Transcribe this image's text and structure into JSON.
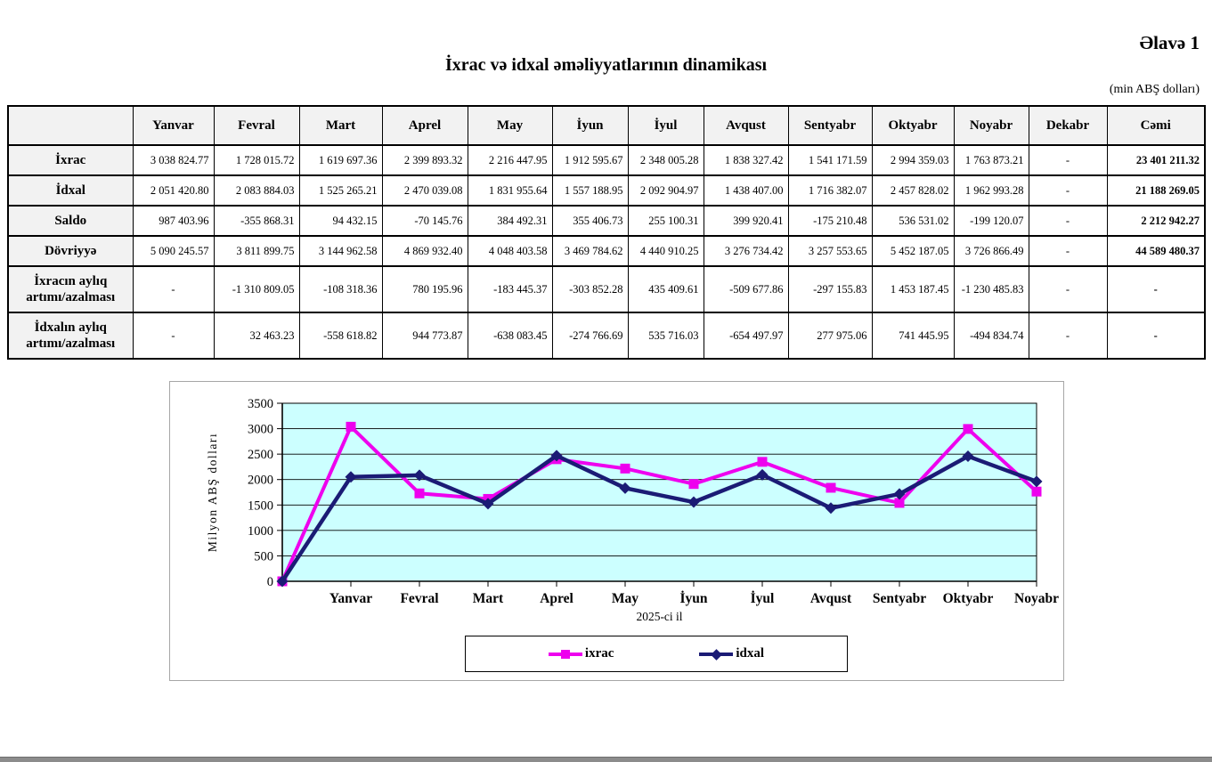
{
  "page": {
    "appendix_label": "Əlavə 1",
    "title": "İxrac və idxal əməliyyatlarının dinamikası",
    "unit_note": "(min ABŞ dolları)"
  },
  "table": {
    "columns": [
      "",
      "Yanvar",
      "Fevral",
      "Mart",
      "Aprel",
      "May",
      "İyun",
      "İyul",
      "Avqust",
      "Sentyabr",
      "Oktyabr",
      "Noyabr",
      "Dekabr",
      "Cəmi"
    ],
    "rows": [
      {
        "label": "İxrac",
        "values": [
          "3 038 824.77",
          "1 728 015.72",
          "1 619 697.36",
          "2 399 893.32",
          "2 216 447.95",
          "1 912 595.67",
          "2 348 005.28",
          "1 838 327.42",
          "1 541 171.59",
          "2 994 359.03",
          "1 763 873.21",
          "-",
          "23 401 211.32"
        ]
      },
      {
        "label": "İdxal",
        "values": [
          "2 051 420.80",
          "2 083 884.03",
          "1 525 265.21",
          "2 470 039.08",
          "1 831 955.64",
          "1 557 188.95",
          "2 092 904.97",
          "1 438 407.00",
          "1 716 382.07",
          "2 457 828.02",
          "1 962 993.28",
          "-",
          "21 188 269.05"
        ]
      },
      {
        "label": "Saldo",
        "values": [
          "987 403.96",
          "-355 868.31",
          "94 432.15",
          "-70 145.76",
          "384 492.31",
          "355 406.73",
          "255 100.31",
          "399 920.41",
          "-175 210.48",
          "536 531.02",
          "-199 120.07",
          "-",
          "2 212 942.27"
        ]
      },
      {
        "label": "Dövriyyə",
        "values": [
          "5 090 245.57",
          "3 811 899.75",
          "3 144 962.58",
          "4 869 932.40",
          "4 048 403.58",
          "3 469 784.62",
          "4 440 910.25",
          "3 276 734.42",
          "3 257 553.65",
          "5 452 187.05",
          "3 726 866.49",
          "-",
          "44 589 480.37"
        ]
      },
      {
        "label": "İxracın aylıq artımı/azalması",
        "values": [
          "-",
          "-1 310 809.05",
          "-108 318.36",
          "780 195.96",
          "-183 445.37",
          "-303 852.28",
          "435 409.61",
          "-509 677.86",
          "-297 155.83",
          "1 453 187.45",
          "-1 230 485.83",
          "-",
          "-"
        ]
      },
      {
        "label": "İdxalın aylıq artımı/azalması",
        "values": [
          "-",
          "32 463.23",
          "-558 618.82",
          "944 773.87",
          "-638 083.45",
          "-274 766.69",
          "535 716.03",
          "-654 497.97",
          "277 975.06",
          "741 445.95",
          "-494 834.74",
          "-",
          "-"
        ]
      }
    ]
  },
  "chart_data": {
    "type": "line",
    "title": "",
    "xlabel": "2025-ci il",
    "ylabel": "Milyon ABŞ dolları",
    "ylim": [
      0,
      3500
    ],
    "ytick_step": 500,
    "grid": true,
    "legend_position": "bottom",
    "plot_bg": "#ccffff",
    "categories": [
      "",
      "Yanvar",
      "Fevral",
      "Mart",
      "Aprel",
      "May",
      "İyun",
      "İyul",
      "Avqust",
      "Sentyabr",
      "Oktyabr",
      "Noyabr"
    ],
    "series": [
      {
        "name": "ixrac",
        "color": "#ee00ee",
        "marker": "square",
        "values": [
          0,
          3038.82,
          1728.02,
          1619.7,
          2399.89,
          2216.45,
          1912.6,
          2348.01,
          1838.33,
          1541.17,
          2994.36,
          1763.87
        ]
      },
      {
        "name": "idxal",
        "color": "#1b1b75",
        "marker": "diamond",
        "values": [
          0,
          2051.42,
          2083.88,
          1525.27,
          2470.04,
          1831.96,
          1557.19,
          2092.9,
          1438.41,
          1716.38,
          2457.83,
          1962.99
        ]
      }
    ]
  }
}
